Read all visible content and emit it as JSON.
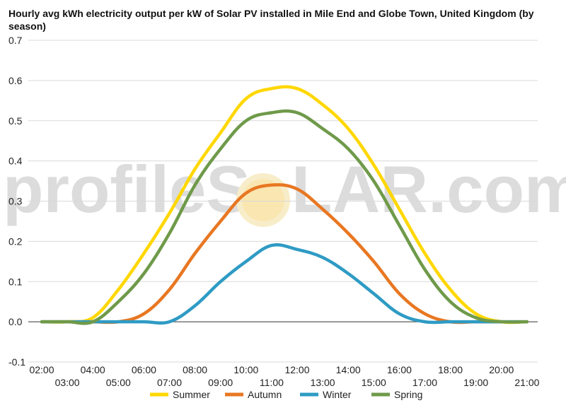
{
  "title": "Hourly avg kWh electricity output per kW of Solar PV installed in Mile End and Globe Town, United Kingdom (by season)",
  "watermark": {
    "left": "profileS",
    "right": "LAR.com"
  },
  "chart_data": {
    "type": "line",
    "title": "Hourly avg kWh electricity output per kW of Solar PV installed in Mile End and Globe Town, United Kingdom (by season)",
    "xlabel": "",
    "ylabel": "",
    "ylim": [
      -0.1,
      0.7
    ],
    "yticks": [
      "-0.1",
      "0.0",
      "0.1",
      "0.2",
      "0.3",
      "0.4",
      "0.5",
      "0.6",
      "0.7"
    ],
    "xticks": [
      "02:00",
      "03:00",
      "04:00",
      "05:00",
      "06:00",
      "07:00",
      "08:00",
      "09:00",
      "10:00",
      "11:00",
      "12:00",
      "13:00",
      "14:00",
      "15:00",
      "16:00",
      "17:00",
      "18:00",
      "19:00",
      "20:00",
      "21:00"
    ],
    "grid": true,
    "legend_position": "bottom",
    "x": [
      "02:00",
      "03:00",
      "04:00",
      "05:00",
      "06:00",
      "07:00",
      "08:00",
      "09:00",
      "10:00",
      "11:00",
      "12:00",
      "13:00",
      "14:00",
      "15:00",
      "16:00",
      "17:00",
      "18:00",
      "19:00",
      "20:00",
      "21:00"
    ],
    "series": [
      {
        "name": "Summer",
        "color": "#FFD700",
        "values": [
          0.0,
          0.0,
          0.01,
          0.08,
          0.17,
          0.27,
          0.38,
          0.47,
          0.555,
          0.58,
          0.58,
          0.54,
          0.48,
          0.39,
          0.28,
          0.17,
          0.08,
          0.02,
          0.0,
          0.0
        ]
      },
      {
        "name": "Autumn",
        "color": "#E87722",
        "values": [
          0.0,
          0.0,
          0.0,
          0.0,
          0.02,
          0.08,
          0.17,
          0.25,
          0.32,
          0.34,
          0.33,
          0.28,
          0.22,
          0.15,
          0.07,
          0.02,
          0.0,
          0.0,
          0.0,
          0.0
        ]
      },
      {
        "name": "Winter",
        "color": "#2E9BC4",
        "values": [
          0.0,
          0.0,
          0.0,
          0.0,
          0.0,
          0.0,
          0.04,
          0.1,
          0.15,
          0.19,
          0.18,
          0.16,
          0.12,
          0.07,
          0.02,
          0.0,
          0.0,
          0.0,
          0.0,
          0.0
        ]
      },
      {
        "name": "Spring",
        "color": "#6F9A4A",
        "values": [
          0.0,
          0.0,
          0.0,
          0.05,
          0.12,
          0.22,
          0.34,
          0.43,
          0.5,
          0.52,
          0.52,
          0.48,
          0.43,
          0.35,
          0.24,
          0.13,
          0.05,
          0.01,
          0.0,
          0.0
        ]
      }
    ]
  }
}
